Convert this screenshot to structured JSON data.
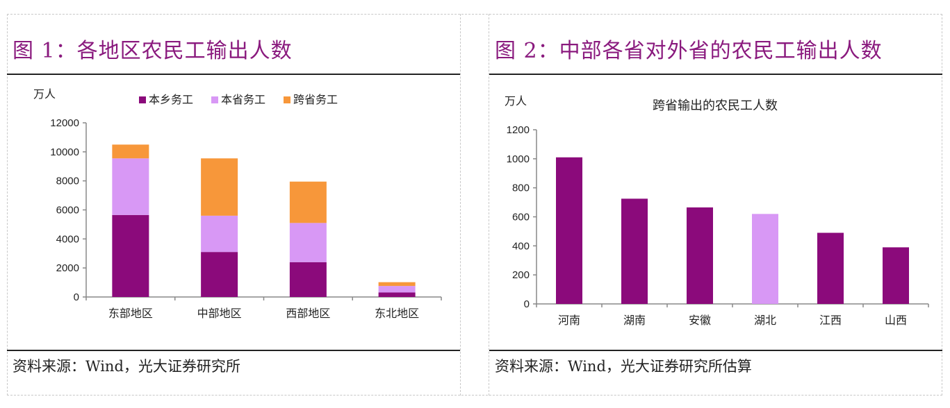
{
  "colors": {
    "purple": "#8b0a7b",
    "lavender": "#d898f5",
    "orange": "#f7973a",
    "title": "#8a1a7e"
  },
  "panel1": {
    "title": "图 1：各地区农民工输出人数",
    "source": "资料来源：Wind，光大证券研究所"
  },
  "panel2": {
    "title": "图 2：中部各省对外省的农民工输出人数",
    "source": "资料来源：Wind，光大证券研究所估算"
  },
  "chart_data": [
    {
      "type": "bar",
      "stacked": true,
      "unit_label": "万人",
      "categories": [
        "东部地区",
        "中部地区",
        "西部地区",
        "东北地区"
      ],
      "series": [
        {
          "name": "本乡务工",
          "color": "#8b0a7b",
          "values": [
            5650,
            3100,
            2400,
            310
          ]
        },
        {
          "name": "本省务工",
          "color": "#d898f5",
          "values": [
            3900,
            2500,
            2700,
            450
          ]
        },
        {
          "name": "跨省务工",
          "color": "#f7973a",
          "values": [
            950,
            3950,
            2850,
            260
          ]
        }
      ],
      "ylim": [
        0,
        12000
      ],
      "yticks": [
        0,
        2000,
        4000,
        6000,
        8000,
        10000,
        12000
      ],
      "legend_position": "top",
      "grid": false
    },
    {
      "type": "bar",
      "title": "跨省输出的农民工人数",
      "unit_label": "万人",
      "categories": [
        "河南",
        "湖南",
        "安徽",
        "湖北",
        "江西",
        "山西"
      ],
      "values": [
        1010,
        725,
        665,
        620,
        490,
        390
      ],
      "bar_colors": [
        "#8b0a7b",
        "#8b0a7b",
        "#8b0a7b",
        "#d898f5",
        "#8b0a7b",
        "#8b0a7b"
      ],
      "ylim": [
        0,
        1200
      ],
      "yticks": [
        0,
        200,
        400,
        600,
        800,
        1000,
        1200
      ],
      "grid": false
    }
  ]
}
